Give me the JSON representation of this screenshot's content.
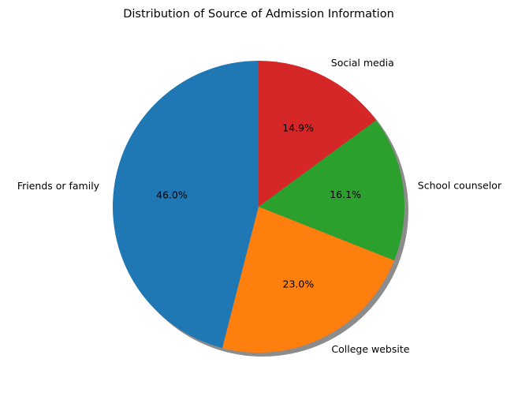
{
  "chart_data": {
    "type": "pie",
    "title": "Distribution of Source of Admission Information",
    "categories": [
      "Friends or family",
      "College website",
      "School counselor",
      "Social media"
    ],
    "values": [
      46.0,
      23.0,
      16.1,
      14.9
    ],
    "value_labels": [
      "46.0%",
      "23.0%",
      "16.1%",
      "14.9%"
    ],
    "colors": [
      "#1f77b4",
      "#ff7f0e",
      "#2ca02c",
      "#d62728"
    ],
    "start_angle_deg": 90,
    "direction": "counterclockwise",
    "shadow": true,
    "legend": "none"
  }
}
